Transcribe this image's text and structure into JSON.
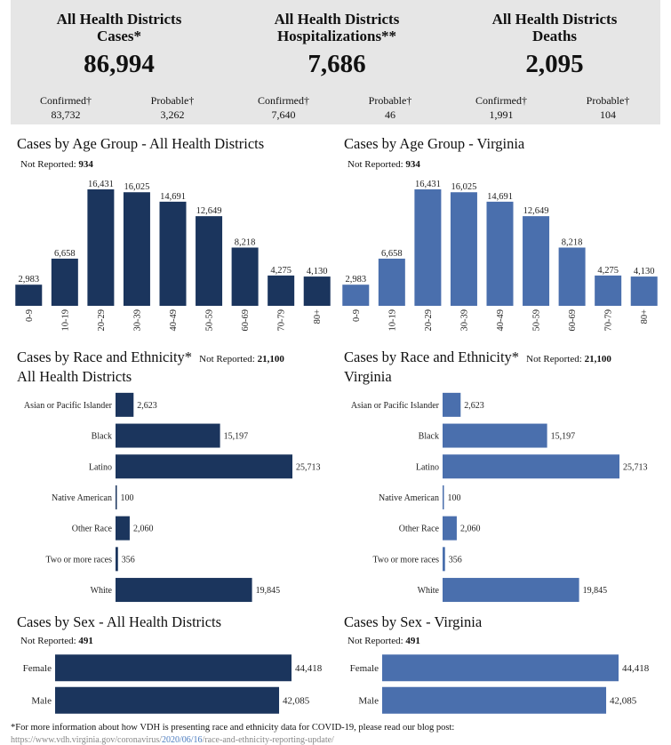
{
  "colors": {
    "dark": "#1b355d",
    "light": "#4a6fad",
    "panel": "#e6e6e6"
  },
  "stats": [
    {
      "title_line1": "All Health Districts",
      "title_line2": "Cases*",
      "total": "86,994",
      "confirmed_label": "Confirmed†",
      "confirmed_value": "83,732",
      "probable_label": "Probable†",
      "probable_value": "3,262"
    },
    {
      "title_line1": "All Health Districts",
      "title_line2": "Hospitalizations**",
      "total": "7,686",
      "confirmed_label": "Confirmed†",
      "confirmed_value": "7,640",
      "probable_label": "Probable†",
      "probable_value": "46"
    },
    {
      "title_line1": "All Health Districts",
      "title_line2": "Deaths",
      "total": "2,095",
      "confirmed_label": "Confirmed†",
      "confirmed_value": "1,991",
      "probable_label": "Probable†",
      "probable_value": "104"
    }
  ],
  "sections": {
    "age_left_title": "Cases by Age Group - All Health Districts",
    "age_right_title": "Cases by Age Group - Virginia",
    "race_left_title_l1": "Cases by Race and Ethnicity*",
    "race_left_title_l2": "All Health Districts",
    "race_right_title_l1": "Cases by Race and Ethnicity*",
    "race_right_title_l2": "Virginia",
    "sex_left_title": "Cases by Sex - All Health Districts",
    "sex_right_title": "Cases by Sex - Virginia",
    "not_reported_label": "Not Reported:",
    "age_not_reported": "934",
    "race_not_reported": "21,100",
    "sex_not_reported": "491"
  },
  "footer": {
    "note": "*For more information about how VDH is presenting race and ethnicity data for COVID-19, please read our blog post:",
    "link_prefix": "https://www.vdh.virginia.gov/coronavirus/",
    "link_date": "2020/06/16",
    "link_suffix": "/race-and-ethnicity-reporting-update/"
  },
  "chart_data": [
    {
      "type": "bar",
      "id": "age-left",
      "title": "Cases by Age Group - All Health Districts",
      "color": "#1b355d",
      "categories": [
        "0-9",
        "10-19",
        "20-29",
        "30-39",
        "40-49",
        "50-59",
        "60-69",
        "70-79",
        "80+"
      ],
      "values": [
        2983,
        6658,
        16431,
        16025,
        14691,
        12649,
        8218,
        4275,
        4130
      ],
      "labels": [
        "2,983",
        "6,658",
        "16,431",
        "16,025",
        "14,691",
        "12,649",
        "8,218",
        "4,275",
        "4,130"
      ],
      "ylim": [
        0,
        16431
      ]
    },
    {
      "type": "bar",
      "id": "age-right",
      "title": "Cases by Age Group - Virginia",
      "color": "#4a6fad",
      "categories": [
        "0-9",
        "10-19",
        "20-29",
        "30-39",
        "40-49",
        "50-59",
        "60-69",
        "70-79",
        "80+"
      ],
      "values": [
        2983,
        6658,
        16431,
        16025,
        14691,
        12649,
        8218,
        4275,
        4130
      ],
      "labels": [
        "2,983",
        "6,658",
        "16,431",
        "16,025",
        "14,691",
        "12,649",
        "8,218",
        "4,275",
        "4,130"
      ],
      "ylim": [
        0,
        16431
      ]
    },
    {
      "type": "bar",
      "orientation": "horizontal",
      "id": "race-left",
      "title": "Cases by Race and Ethnicity* All Health Districts",
      "color": "#1b355d",
      "categories": [
        "Asian or Pacific Islander",
        "Black",
        "Latino",
        "Native American",
        "Other Race",
        "Two or more races",
        "White"
      ],
      "values": [
        2623,
        15197,
        25713,
        100,
        2060,
        356,
        19845
      ],
      "labels": [
        "2,623",
        "15,197",
        "25,713",
        "100",
        "2,060",
        "356",
        "19,845"
      ],
      "xlim": [
        0,
        25713
      ]
    },
    {
      "type": "bar",
      "orientation": "horizontal",
      "id": "race-right",
      "title": "Cases by Race and Ethnicity* Virginia",
      "color": "#4a6fad",
      "categories": [
        "Asian or Pacific Islander",
        "Black",
        "Latino",
        "Native American",
        "Other Race",
        "Two or more races",
        "White"
      ],
      "values": [
        2623,
        15197,
        25713,
        100,
        2060,
        356,
        19845
      ],
      "labels": [
        "2,623",
        "15,197",
        "25,713",
        "100",
        "2,060",
        "356",
        "19,845"
      ],
      "xlim": [
        0,
        25713
      ]
    },
    {
      "type": "bar",
      "orientation": "horizontal",
      "id": "sex-left",
      "title": "Cases by Sex - All Health Districts",
      "color": "#1b355d",
      "categories": [
        "Female",
        "Male"
      ],
      "values": [
        44418,
        42085
      ],
      "labels": [
        "44,418",
        "42,085"
      ],
      "xlim": [
        0,
        44418
      ]
    },
    {
      "type": "bar",
      "orientation": "horizontal",
      "id": "sex-right",
      "title": "Cases by Sex - Virginia",
      "color": "#4a6fad",
      "categories": [
        "Female",
        "Male"
      ],
      "values": [
        44418,
        42085
      ],
      "labels": [
        "44,418",
        "42,085"
      ],
      "xlim": [
        0,
        44418
      ]
    }
  ]
}
